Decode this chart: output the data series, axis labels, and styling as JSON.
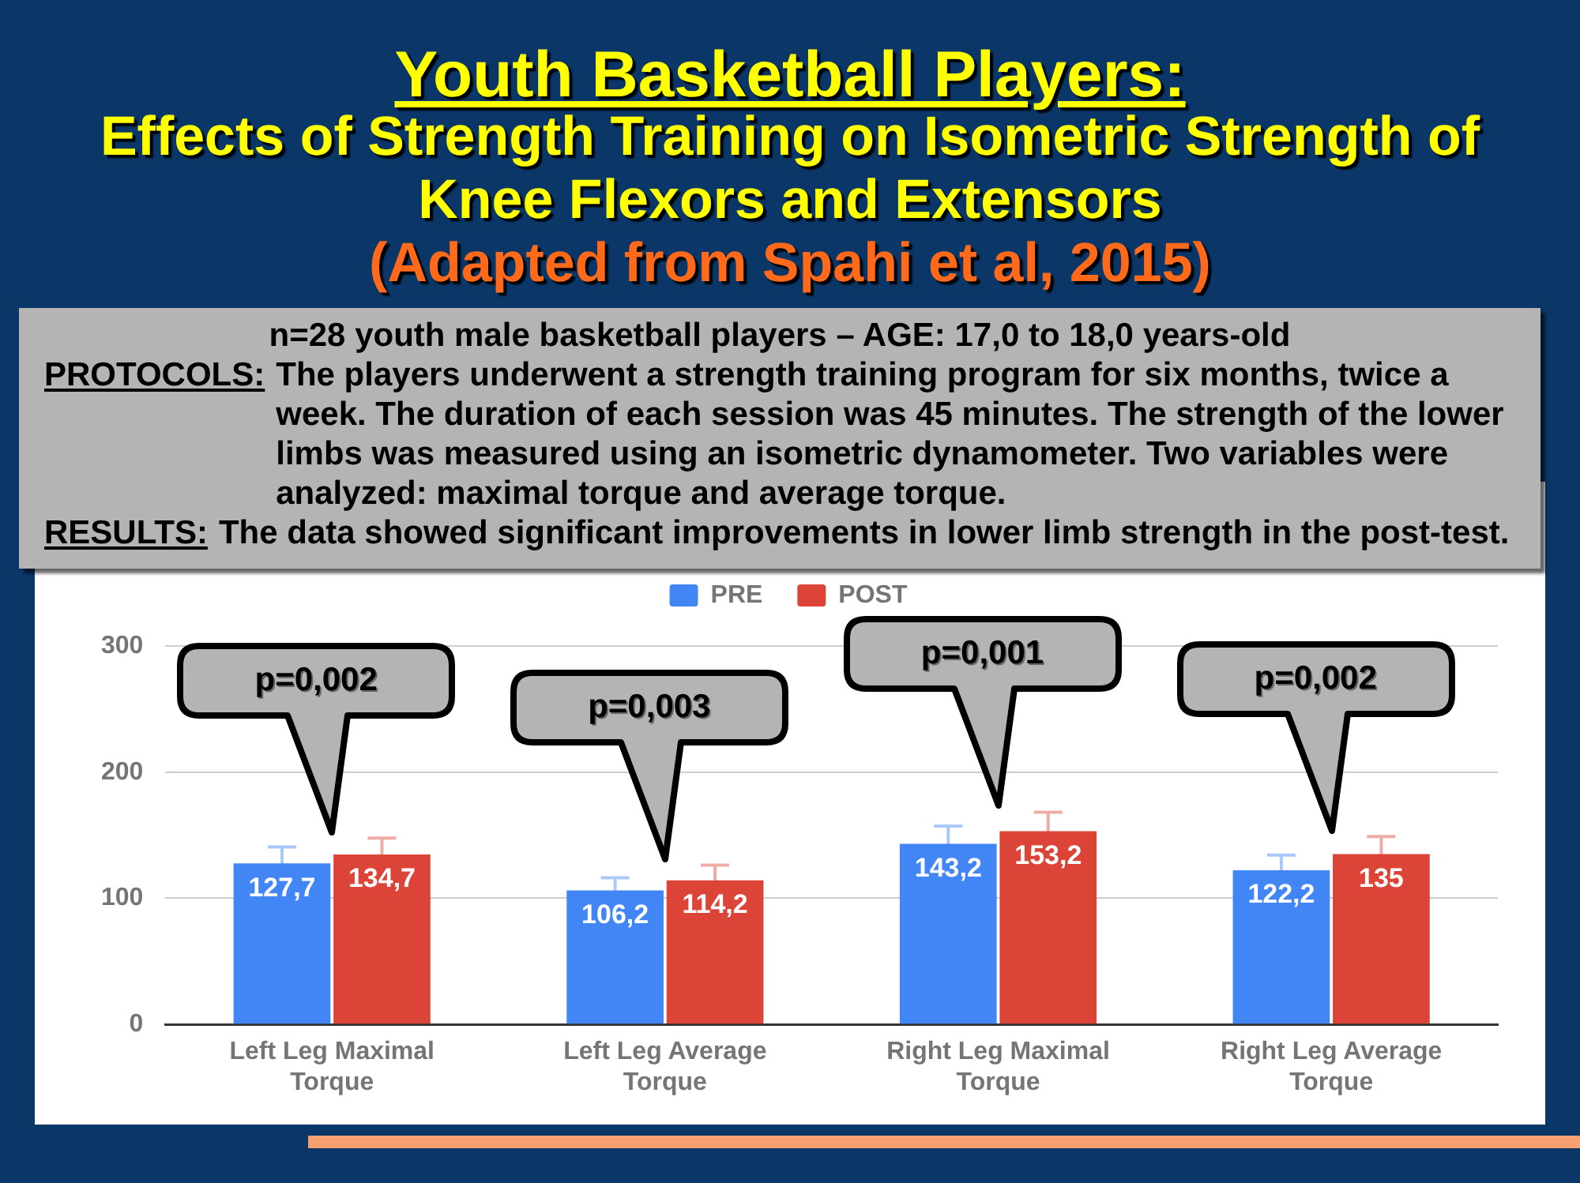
{
  "chart_data": {
    "type": "bar",
    "title": "Youth Basketball Players:",
    "subtitle": "Effects of Strength Training on Isometric Strength of Knee Flexors and Extensors",
    "annotations": [
      "(Adapted from Spahi et al, 2015)",
      "n=28 youth male basketball players – AGE: 17,0 to 18,0 years-old",
      "PROTOCOLS:",
      "The players underwent a strength training program for six months, twice a week. The duration of each session was 45 minutes. The strength of the lower limbs was measured using an isometric dynamometer. Two variables were analyzed: maximal torque and average torque.",
      "RESULTS:",
      "The data showed significant improvements in lower limb strength in the post-test.",
      "p=0,002",
      "p=0,003",
      "p=0,001",
      "p=0,002"
    ],
    "categories": [
      "Left Leg Maximal Torque",
      "Left Leg Average Torque",
      "Right Leg Maximal Torque",
      "Right Leg Average Torque"
    ],
    "series": [
      {
        "name": "PRE",
        "color": "#4285f4",
        "values": [
          127.7,
          106.2,
          143.2,
          122.2
        ],
        "errors": [
          13,
          10,
          14,
          12
        ],
        "value_labels": [
          "127,7",
          "106,2",
          "143,2",
          "122,2"
        ]
      },
      {
        "name": "POST",
        "color": "#db4437",
        "values": [
          134.7,
          114.2,
          153.2,
          135
        ],
        "errors": [
          13,
          12,
          15,
          14
        ],
        "value_labels": [
          "134,7",
          "114,2",
          "153,2",
          "135"
        ]
      }
    ],
    "ylim": [
      0,
      300
    ],
    "yticks": [
      0,
      100,
      200,
      300
    ],
    "grid": "y",
    "legend": "top"
  }
}
